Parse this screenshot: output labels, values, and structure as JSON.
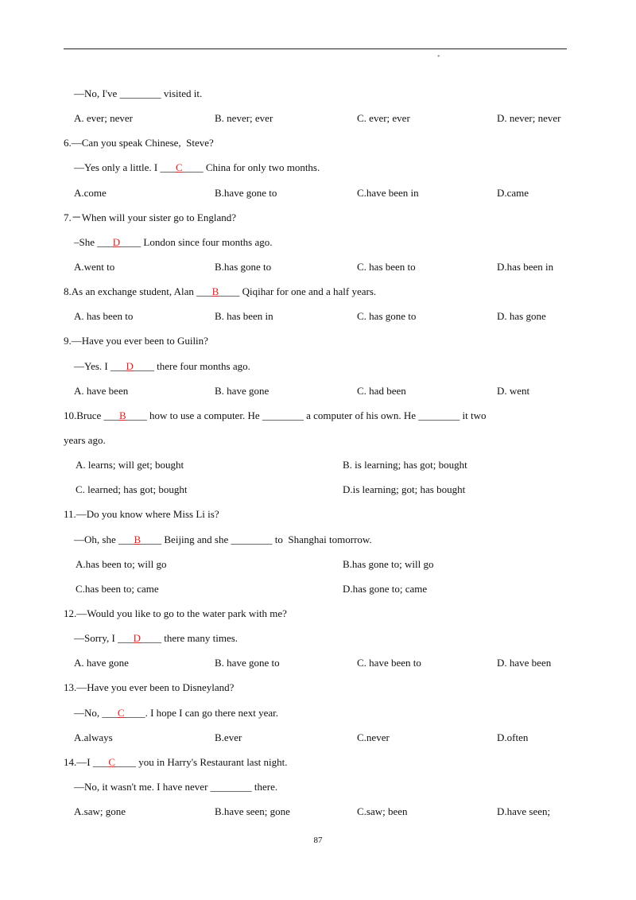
{
  "header": {
    "mark": "*"
  },
  "lines": [
    {
      "text": "—No, I've ________ visited it."
    },
    {
      "options": [
        "A. ever; never",
        "B. never; ever",
        "C. ever; ever",
        "D. never; never"
      ]
    },
    {
      "text": "6.—Can you speak Chinese,  Steve?"
    },
    {
      "before": "—Yes only a little. I ___",
      "answer": "C",
      "after": "____ China for only two months."
    },
    {
      "options": [
        "A.come",
        "B.have gone to",
        "C.have been in",
        "D.came"
      ]
    },
    {
      "text": "7.－When will your sister go to England?"
    },
    {
      "before": "–She ___",
      "answer": "D",
      "after": "____ London since four months ago."
    },
    {
      "options": [
        "A.went to",
        "B.has gone to",
        "C. has been to",
        "D.has been in"
      ]
    },
    {
      "before": "8.As an exchange student, Alan ___",
      "answer": "B",
      "after": "____ Qiqihar for one and a half years."
    },
    {
      "options": [
        "A. has been to",
        "B. has been in",
        "C. has gone to",
        "D. has gone"
      ]
    },
    {
      "text": "9.—Have you ever been to Guilin?"
    },
    {
      "before": "—Yes. I ___",
      "answer": "D",
      "after": "____ there four months ago."
    },
    {
      "options": [
        "A. have been",
        "B. have gone",
        "C. had been",
        "D. went"
      ]
    },
    {
      "before": "10.Bruce ___",
      "answer": "B",
      "after": "____ how to use a computer. He ________ a computer of his own. He ________ it two"
    },
    {
      "text": "years ago."
    },
    {
      "options": [
        "A. learns; will get; bought",
        "B. is learning; has got; bought"
      ]
    },
    {
      "options": [
        "C. learned; has got; bought",
        "D.is learning; got; has bought"
      ]
    },
    {
      "text": "11.—Do you know where Miss Li is?"
    },
    {
      "before": "—Oh, she ___",
      "answer": "B",
      "after": "____ Beijing and she ________ to  Shanghai tomorrow."
    },
    {
      "options": [
        "A.has been to; will go",
        "B.has gone to; will go"
      ]
    },
    {
      "options": [
        "C.has been to; came",
        "D.has gone to; came"
      ]
    },
    {
      "text": "12.—Would you like to go to the water park with me?"
    },
    {
      "before": "—Sorry, I ___",
      "answer": "D",
      "after": "____ there many times."
    },
    {
      "options": [
        "A. have gone",
        "B. have gone to",
        "C. have been to",
        "D. have been"
      ]
    },
    {
      "text": "13.—Have you ever been to Disneyland?"
    },
    {
      "before": "—No, ___",
      "answer": "C",
      "after": "____. I hope I can go there next year."
    },
    {
      "options": [
        "A.always",
        "B.ever",
        "C.never",
        "D.often"
      ]
    },
    {
      "before": "14.—I ___",
      "answer": "C",
      "after": "____ you in Harry's Restaurant last night."
    },
    {
      "text": "—No, it wasn't me. I have never ________ there."
    },
    {
      "options": [
        "A.saw; gone",
        "B.have seen; gone",
        "C.saw; been",
        "D.have seen;"
      ]
    }
  ],
  "footer": {
    "page_number": "87"
  }
}
